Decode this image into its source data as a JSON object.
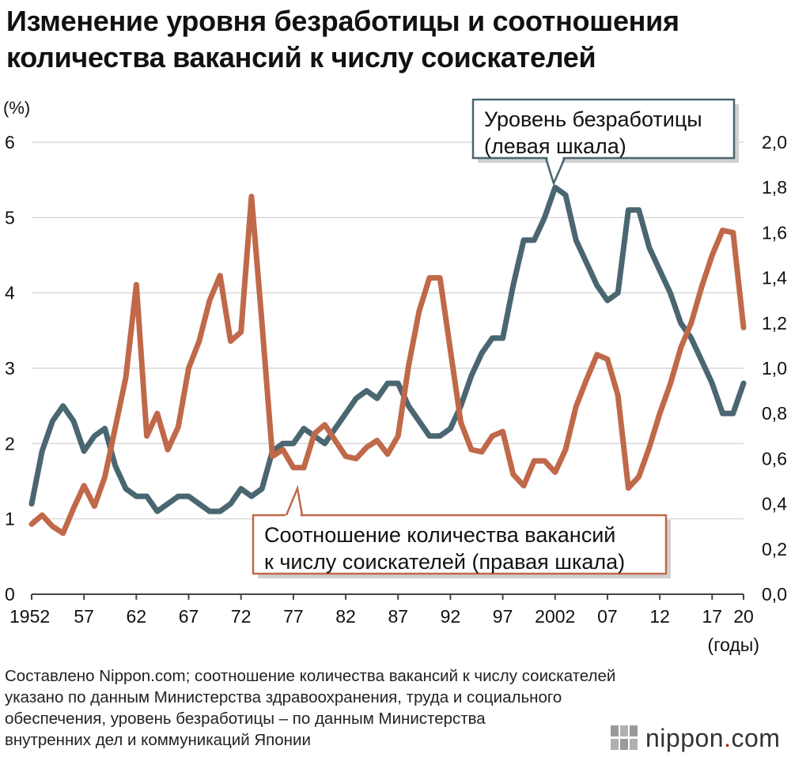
{
  "title_lines": [
    "Изменение уровня безработицы и соотношения",
    "количества вакансий к числу соискателей"
  ],
  "source_lines": [
    "Составлено Nippon.com; соотношение количества вакансий к числу соискателей",
    "указано по данным Министерства здравоохранения, труда и социального",
    "обеспечения, уровень безработицы – по данным Министерства",
    "внутренних дел и коммуникаций Японии"
  ],
  "logo": {
    "text": "nippon",
    "dot": ".",
    "suffix": "com",
    "icon": "nippon-logo-icon"
  },
  "colors": {
    "unemployment": "#4a6670",
    "ratio": "#c0694a",
    "grid": "#cfcfcf",
    "axis": "#444444"
  },
  "chart_data": {
    "type": "line",
    "x_tick_labels": [
      "1952",
      "57",
      "62",
      "67",
      "72",
      "77",
      "82",
      "87",
      "92",
      "97",
      "2002",
      "07",
      "12",
      "17",
      "20"
    ],
    "x_tick_years": [
      1952,
      1957,
      1962,
      1967,
      1972,
      1977,
      1982,
      1987,
      1992,
      1997,
      2002,
      2007,
      2012,
      2017,
      2020
    ],
    "xlabel": "(годы)",
    "xlim": [
      1952,
      2020
    ],
    "left_axis": {
      "label": "(%)",
      "ylim": [
        0,
        6
      ],
      "ticks": [
        "0",
        "1",
        "2",
        "3",
        "4",
        "5",
        "6"
      ],
      "tick_values": [
        0,
        1,
        2,
        3,
        4,
        5,
        6
      ]
    },
    "right_axis": {
      "ylim": [
        0,
        2
      ],
      "ticks": [
        "0,0",
        "0,2",
        "0,4",
        "0,6",
        "0,8",
        "1,0",
        "1,2",
        "1,4",
        "1,6",
        "1,8",
        "2,0"
      ],
      "tick_values": [
        0,
        0.2,
        0.4,
        0.6,
        0.8,
        1.0,
        1.2,
        1.4,
        1.6,
        1.8,
        2.0
      ]
    },
    "grid": true,
    "series": [
      {
        "name": "Уровень безработицы (левая шкала)",
        "label_lines": [
          "Уровень безработицы",
          "(левая шкала)"
        ],
        "axis": "left",
        "x": [
          1952,
          1953,
          1954,
          1955,
          1956,
          1957,
          1958,
          1959,
          1960,
          1961,
          1962,
          1963,
          1964,
          1965,
          1966,
          1967,
          1968,
          1969,
          1970,
          1971,
          1972,
          1973,
          1974,
          1975,
          1976,
          1977,
          1978,
          1979,
          1980,
          1981,
          1982,
          1983,
          1984,
          1985,
          1986,
          1987,
          1988,
          1989,
          1990,
          1991,
          1992,
          1993,
          1994,
          1995,
          1996,
          1997,
          1998,
          1999,
          2000,
          2001,
          2002,
          2003,
          2004,
          2005,
          2006,
          2007,
          2008,
          2009,
          2010,
          2011,
          2012,
          2013,
          2014,
          2015,
          2016,
          2017,
          2018,
          2019,
          2020
        ],
        "values": [
          1.2,
          1.9,
          2.3,
          2.5,
          2.3,
          1.9,
          2.1,
          2.2,
          1.7,
          1.4,
          1.3,
          1.3,
          1.1,
          1.2,
          1.3,
          1.3,
          1.2,
          1.1,
          1.1,
          1.2,
          1.4,
          1.3,
          1.4,
          1.9,
          2.0,
          2.0,
          2.2,
          2.1,
          2.0,
          2.2,
          2.4,
          2.6,
          2.7,
          2.6,
          2.8,
          2.8,
          2.5,
          2.3,
          2.1,
          2.1,
          2.2,
          2.5,
          2.9,
          3.2,
          3.4,
          3.4,
          4.1,
          4.7,
          4.7,
          5.0,
          5.4,
          5.3,
          4.7,
          4.4,
          4.1,
          3.9,
          4.0,
          5.1,
          5.1,
          4.6,
          4.3,
          4.0,
          3.6,
          3.4,
          3.1,
          2.8,
          2.4,
          2.4,
          2.8
        ]
      },
      {
        "name": "Соотношение количества вакансий к числу соискателей (правая шкала)",
        "label_lines": [
          "Соотношение количества вакансий",
          "к числу соискателей (правая шкала)"
        ],
        "axis": "right",
        "x": [
          1952,
          1953,
          1954,
          1955,
          1956,
          1957,
          1958,
          1959,
          1960,
          1961,
          1962,
          1963,
          1964,
          1965,
          1966,
          1967,
          1968,
          1969,
          1970,
          1971,
          1972,
          1973,
          1974,
          1975,
          1976,
          1977,
          1978,
          1979,
          1980,
          1981,
          1982,
          1983,
          1984,
          1985,
          1986,
          1987,
          1988,
          1989,
          1990,
          1991,
          1992,
          1993,
          1994,
          1995,
          1996,
          1997,
          1998,
          1999,
          2000,
          2001,
          2002,
          2003,
          2004,
          2005,
          2006,
          2007,
          2008,
          2009,
          2010,
          2011,
          2012,
          2013,
          2014,
          2015,
          2016,
          2017,
          2018,
          2019,
          2020
        ],
        "values": [
          0.31,
          0.35,
          0.3,
          0.27,
          0.38,
          0.48,
          0.39,
          0.52,
          0.74,
          0.96,
          1.37,
          0.7,
          0.8,
          0.64,
          0.74,
          1.0,
          1.12,
          1.3,
          1.41,
          1.12,
          1.16,
          1.76,
          1.2,
          0.61,
          0.64,
          0.56,
          0.56,
          0.71,
          0.75,
          0.68,
          0.61,
          0.6,
          0.65,
          0.68,
          0.62,
          0.7,
          1.01,
          1.25,
          1.4,
          1.4,
          1.08,
          0.76,
          0.64,
          0.63,
          0.7,
          0.72,
          0.53,
          0.48,
          0.59,
          0.59,
          0.54,
          0.64,
          0.83,
          0.95,
          1.06,
          1.04,
          0.88,
          0.47,
          0.52,
          0.65,
          0.8,
          0.93,
          1.09,
          1.2,
          1.36,
          1.5,
          1.61,
          1.6,
          1.18
        ]
      }
    ]
  }
}
